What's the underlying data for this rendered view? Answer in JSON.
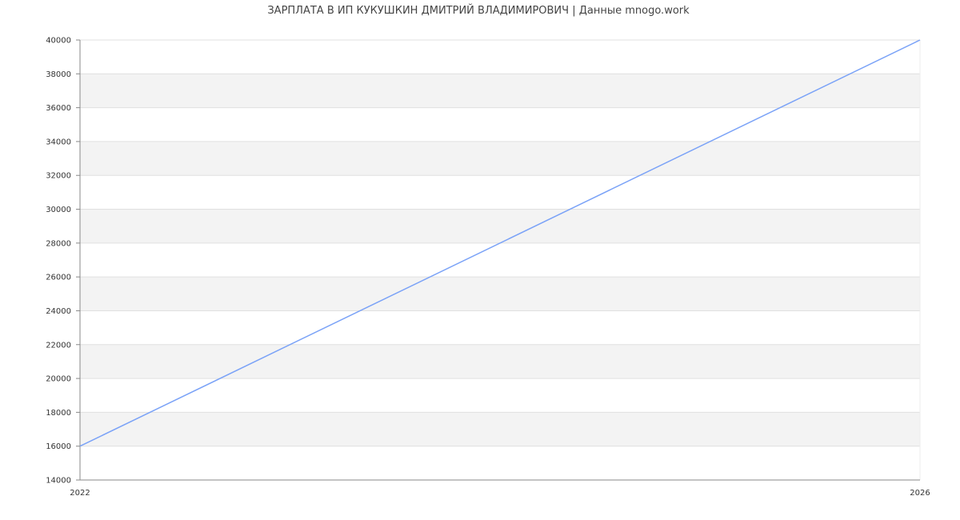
{
  "chart_data": {
    "type": "line",
    "title": "ЗАРПЛАТА В ИП КУКУШКИН ДМИТРИЙ ВЛАДИМИРОВИЧ | Данные mnogo.work",
    "xlabel": "",
    "ylabel": "",
    "x_ticks": [
      "2022",
      "2026"
    ],
    "xlim": [
      2022,
      2026
    ],
    "ylim": [
      14000,
      40000
    ],
    "y_ticks": [
      14000,
      16000,
      18000,
      20000,
      22000,
      24000,
      26000,
      28000,
      30000,
      32000,
      34000,
      36000,
      38000,
      40000
    ],
    "grid": true,
    "alternating_bands": true,
    "series": [
      {
        "x": [
          2022,
          2026
        ],
        "y": [
          16000,
          40000
        ],
        "color": "#7aa2f7"
      }
    ],
    "band_color": "#f3f3f3",
    "grid_color": "#e0e0e0",
    "axis_color": "#888888"
  }
}
